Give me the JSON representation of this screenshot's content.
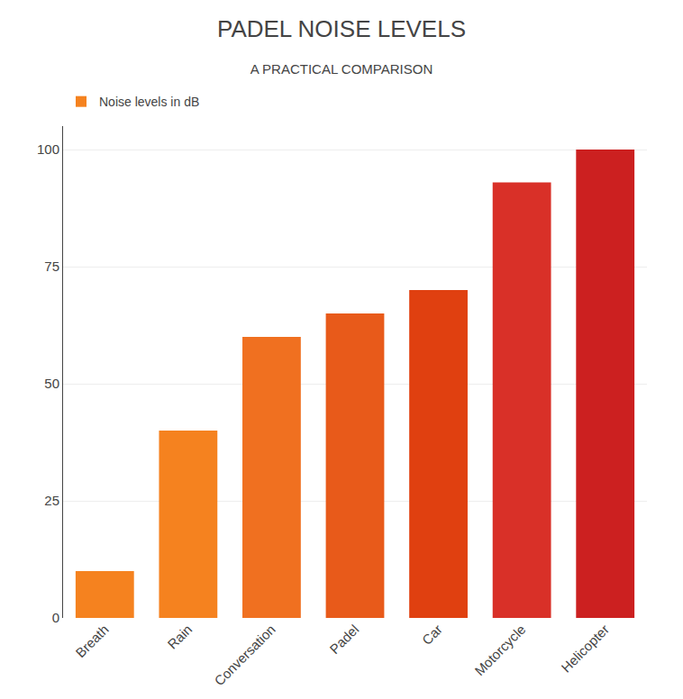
{
  "chart_data": {
    "type": "bar",
    "title": "PADEL NOISE LEVELS",
    "subtitle": "A PRACTICAL COMPARISON",
    "categories": [
      "Breath",
      "Rain",
      "Conversation",
      "Padel",
      "Car",
      "Motorcycle",
      "Helicopter"
    ],
    "series": [
      {
        "name": "Noise levels in dB",
        "values": [
          10,
          40,
          60,
          65,
          70,
          93,
          100
        ],
        "colors": [
          "#f5821f",
          "#f5821f",
          "#f07020",
          "#e85a1a",
          "#e04010",
          "#d93028",
          "#cc2020"
        ]
      }
    ],
    "ylim": [
      0,
      105
    ],
    "yticks": [
      0,
      25,
      50,
      75,
      100
    ],
    "grid": true,
    "legend": "upper left"
  }
}
